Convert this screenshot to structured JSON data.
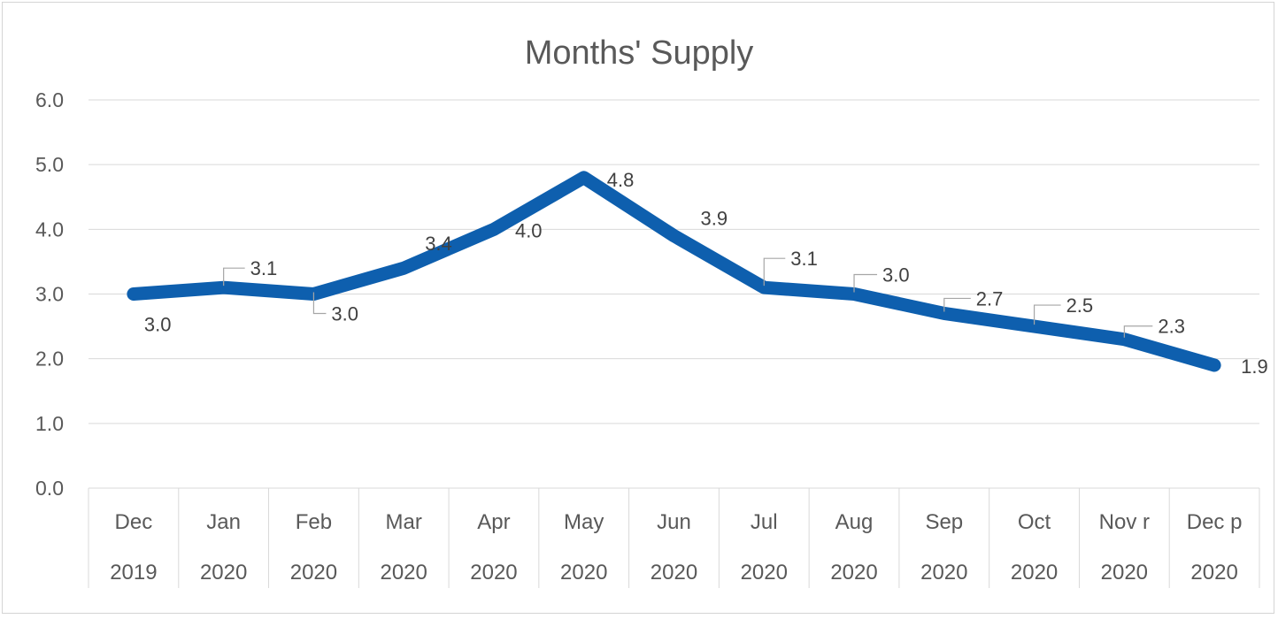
{
  "chart_data": {
    "type": "line",
    "title": "Months' Supply",
    "categories": [
      [
        "Dec",
        "2019"
      ],
      [
        "Jan",
        "2020"
      ],
      [
        "Feb",
        "2020"
      ],
      [
        "Mar",
        "2020"
      ],
      [
        "Apr",
        "2020"
      ],
      [
        "May",
        "2020"
      ],
      [
        "Jun",
        "2020"
      ],
      [
        "Jul",
        "2020"
      ],
      [
        "Aug",
        "2020"
      ],
      [
        "Sep",
        "2020"
      ],
      [
        "Oct",
        "2020"
      ],
      [
        "Nov r",
        "2020"
      ],
      [
        "Dec p",
        "2020"
      ]
    ],
    "series": [
      {
        "values": [
          3.0,
          3.1,
          3.0,
          3.4,
          4.0,
          4.8,
          3.9,
          3.1,
          3.0,
          2.7,
          2.5,
          2.3,
          1.9
        ],
        "labels": [
          "3.0",
          "3.1",
          "3.0",
          "3.4",
          "4.0",
          "4.8",
          "3.9",
          "3.1",
          "3.0",
          "2.7",
          "2.5",
          "2.3",
          "1.9"
        ],
        "color": "#0E5FAE"
      }
    ],
    "yticks": [
      "0.0",
      "1.0",
      "2.0",
      "3.0",
      "4.0",
      "5.0",
      "6.0"
    ],
    "ylim": [
      0,
      6
    ],
    "xlabel": "",
    "ylabel": "",
    "grid": true,
    "legend": "none"
  }
}
